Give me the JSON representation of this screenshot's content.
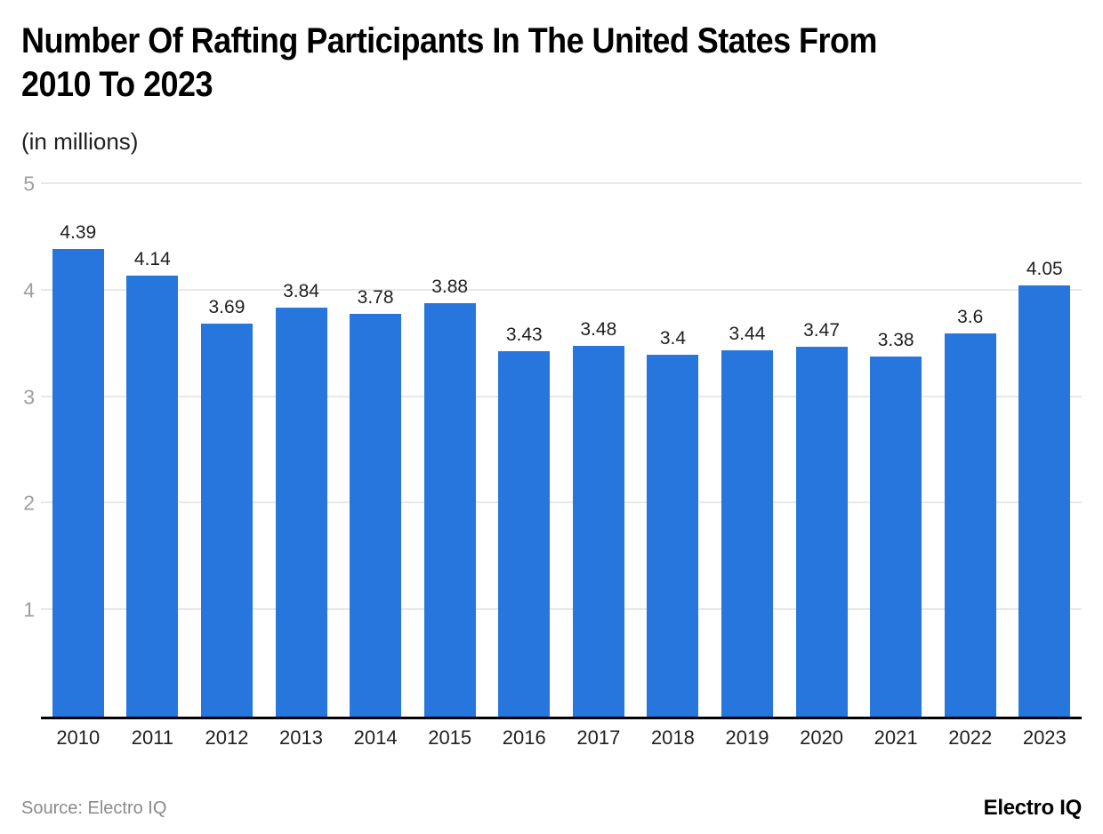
{
  "header": {
    "title_line1": "Number Of Rafting Participants In The United States From",
    "title_line2": "2010 To 2023",
    "subtitle": "(in millions)"
  },
  "chart_data": {
    "type": "bar",
    "title": "Number Of Rafting Participants In The United States From 2010 To 2023",
    "subtitle": "(in millions)",
    "xlabel": "",
    "ylabel": "(in millions)",
    "categories": [
      "2010",
      "2011",
      "2012",
      "2013",
      "2014",
      "2015",
      "2016",
      "2017",
      "2018",
      "2019",
      "2020",
      "2021",
      "2022",
      "2023"
    ],
    "values": [
      4.39,
      4.14,
      3.69,
      3.84,
      3.78,
      3.88,
      3.43,
      3.48,
      3.4,
      3.44,
      3.47,
      3.38,
      3.6,
      4.05
    ],
    "value_labels": [
      "4.39",
      "4.14",
      "3.69",
      "3.84",
      "3.78",
      "3.88",
      "3.43",
      "3.48",
      "3.4",
      "3.44",
      "3.47",
      "3.38",
      "3.6",
      "4.05"
    ],
    "ylim": [
      0,
      5
    ],
    "yticks": [
      1,
      2,
      3,
      4,
      5
    ],
    "grid": true,
    "legend": "none",
    "bar_color": "#2776dd"
  },
  "colors": {
    "bar": "#2776dd",
    "gridline": "#e8e8e8",
    "axis_line": "#000000",
    "ytick_label": "#9e9e9e",
    "text": "#1f1f1f",
    "source_text": "#8a8a8a"
  },
  "footer": {
    "source": "Source: Electro IQ",
    "logo": "Electro IQ"
  }
}
